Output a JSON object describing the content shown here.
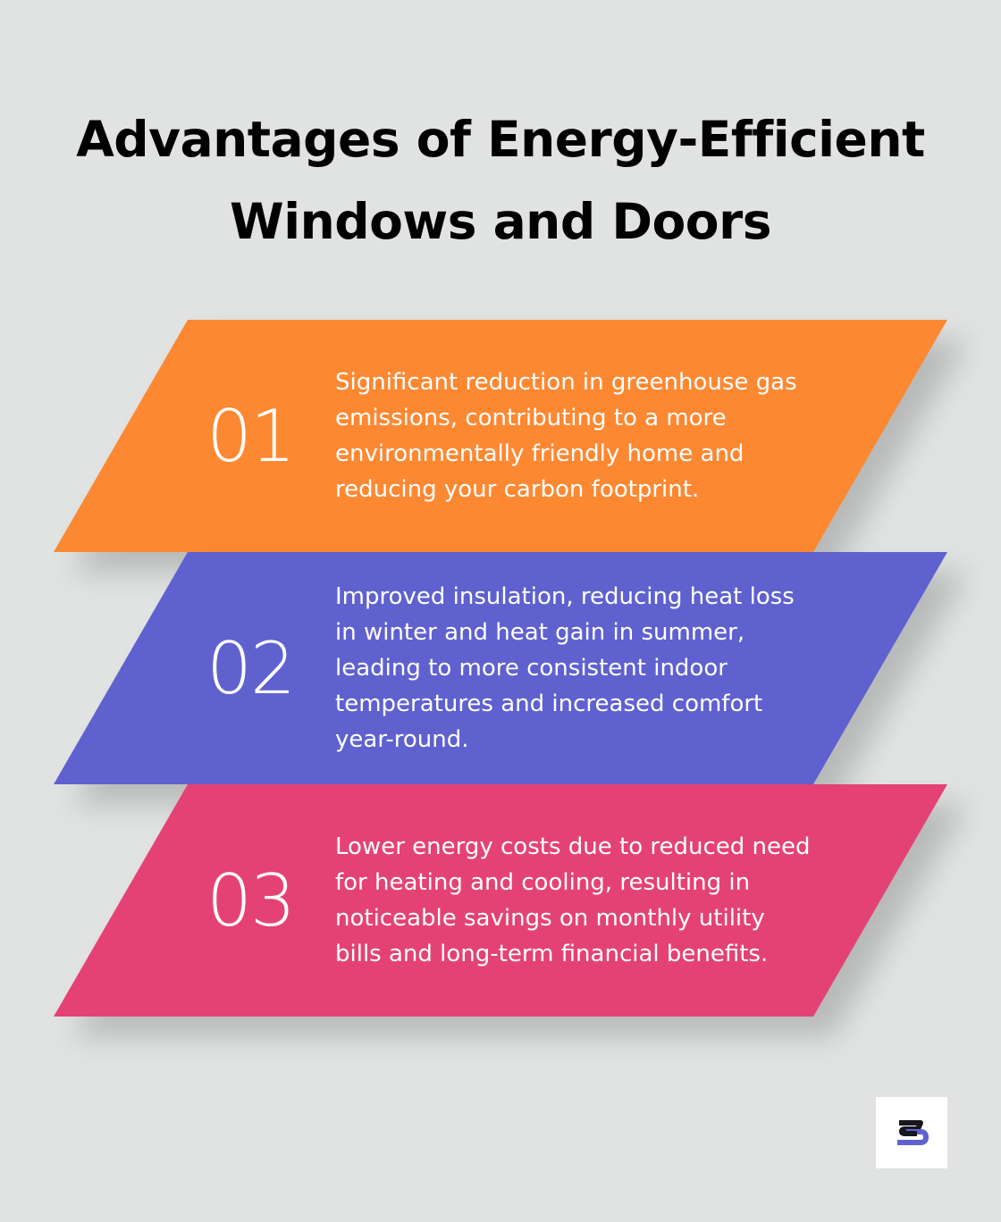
{
  "title": {
    "line1": "Advantages of Energy-Efficient",
    "line2": "Windows and Doors"
  },
  "items": [
    {
      "number": "01",
      "text": "Significant reduction in greenhouse gas emissions, contributing to a more environmentally friendly home and reducing your carbon footprint.",
      "color": "#fd8832"
    },
    {
      "number": "02",
      "text": "Improved insulation, reducing heat loss in winter and heat gain in summer, leading to more consistent indoor temperatures and increased comfort year-round.",
      "color": "#5f61cf"
    },
    {
      "number": "03",
      "text": "Lower energy costs due to reduced need for heating and cooling, resulting in noticeable savings on monthly utility bills and long-term financial benefits.",
      "color": "#e44275"
    }
  ],
  "logo": {
    "icon": "brand-s-logo-icon"
  }
}
